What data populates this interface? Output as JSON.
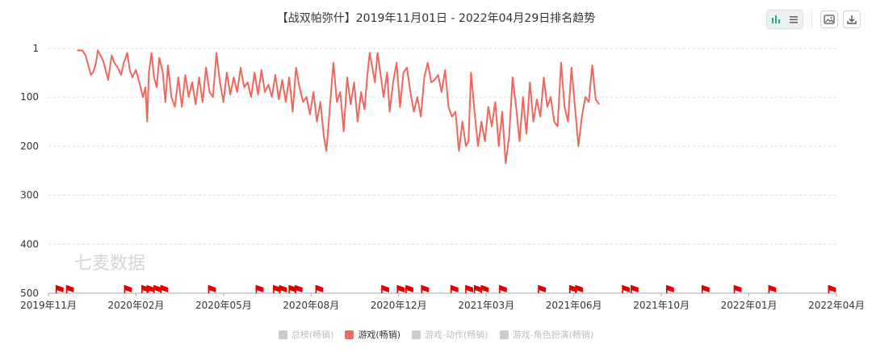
{
  "title": "【战双帕弥什】2019年11月01日 - 2022年04月29日排名趋势",
  "watermark": "七麦数据",
  "toolbar": [
    {
      "name": "bar-chart-icon",
      "state": "active"
    },
    {
      "name": "list-icon",
      "state": "inactive"
    },
    {
      "name": "image-download-icon"
    },
    {
      "name": "download-icon"
    }
  ],
  "colors": {
    "series": "#f0665c",
    "flag": "#e00000",
    "inactive": "#cccccc",
    "grid": "#dddddd"
  },
  "legend": [
    {
      "label": "总榜(畅销)",
      "active": false
    },
    {
      "label": "游戏(畅销)",
      "active": true
    },
    {
      "label": "游戏-动作(畅销)",
      "active": false
    },
    {
      "label": "游戏-角色扮演(畅销)",
      "active": false
    }
  ],
  "chart_data": {
    "type": "line",
    "title": "【战双帕弥什】2019年11月01日 - 2022年04月29日排名趋势",
    "y_axis": {
      "ticks": [
        1,
        100,
        200,
        300,
        400,
        500
      ],
      "range": [
        1,
        500
      ],
      "inverted": true
    },
    "x_axis": {
      "ticks": [
        "2019年11月",
        "2020年02月",
        "2020年05月",
        "2020年08月",
        "2020年12月",
        "2021年03月",
        "2021年06月",
        "2021年10月",
        "2022年01月",
        "2022年04月"
      ],
      "range": [
        "2019-11-01",
        "2022-04-29"
      ]
    },
    "grid": true,
    "series": [
      {
        "name": "游戏(畅销)",
        "points": [
          [
            "2019-12-04",
            5
          ],
          [
            "2019-12-10",
            5
          ],
          [
            "2019-12-14",
            15
          ],
          [
            "2019-12-17",
            35
          ],
          [
            "2019-12-20",
            55
          ],
          [
            "2019-12-23",
            48
          ],
          [
            "2019-12-26",
            30
          ],
          [
            "2019-12-28",
            5
          ],
          [
            "2019-12-31",
            15
          ],
          [
            "2020-01-03",
            25
          ],
          [
            "2020-01-06",
            45
          ],
          [
            "2020-01-09",
            65
          ],
          [
            "2020-01-13",
            15
          ],
          [
            "2020-01-16",
            30
          ],
          [
            "2020-01-20",
            40
          ],
          [
            "2020-01-24",
            55
          ],
          [
            "2020-01-27",
            30
          ],
          [
            "2020-01-31",
            10
          ],
          [
            "2020-02-03",
            45
          ],
          [
            "2020-02-06",
            60
          ],
          [
            "2020-02-10",
            45
          ],
          [
            "2020-02-14",
            70
          ],
          [
            "2020-02-18",
            100
          ],
          [
            "2020-02-21",
            80
          ],
          [
            "2020-02-23",
            150
          ],
          [
            "2020-02-25",
            50
          ],
          [
            "2020-02-28",
            10
          ],
          [
            "2020-03-02",
            60
          ],
          [
            "2020-03-05",
            80
          ],
          [
            "2020-03-08",
            20
          ],
          [
            "2020-03-12",
            50
          ],
          [
            "2020-03-15",
            110
          ],
          [
            "2020-03-18",
            35
          ],
          [
            "2020-03-22",
            100
          ],
          [
            "2020-03-26",
            120
          ],
          [
            "2020-03-30",
            60
          ],
          [
            "2020-04-03",
            120
          ],
          [
            "2020-04-07",
            55
          ],
          [
            "2020-04-11",
            100
          ],
          [
            "2020-04-15",
            70
          ],
          [
            "2020-04-19",
            115
          ],
          [
            "2020-04-23",
            60
          ],
          [
            "2020-04-27",
            110
          ],
          [
            "2020-05-01",
            40
          ],
          [
            "2020-05-05",
            90
          ],
          [
            "2020-05-09",
            100
          ],
          [
            "2020-05-13",
            10
          ],
          [
            "2020-05-17",
            70
          ],
          [
            "2020-05-21",
            110
          ],
          [
            "2020-05-25",
            50
          ],
          [
            "2020-05-29",
            95
          ],
          [
            "2020-06-02",
            60
          ],
          [
            "2020-06-06",
            90
          ],
          [
            "2020-06-10",
            40
          ],
          [
            "2020-06-14",
            80
          ],
          [
            "2020-06-18",
            70
          ],
          [
            "2020-06-22",
            100
          ],
          [
            "2020-06-26",
            50
          ],
          [
            "2020-06-30",
            95
          ],
          [
            "2020-07-04",
            45
          ],
          [
            "2020-07-08",
            90
          ],
          [
            "2020-07-12",
            75
          ],
          [
            "2020-07-16",
            100
          ],
          [
            "2020-07-20",
            55
          ],
          [
            "2020-07-24",
            105
          ],
          [
            "2020-07-28",
            65
          ],
          [
            "2020-08-01",
            110
          ],
          [
            "2020-08-05",
            60
          ],
          [
            "2020-08-09",
            130
          ],
          [
            "2020-08-13",
            40
          ],
          [
            "2020-08-17",
            80
          ],
          [
            "2020-08-21",
            110
          ],
          [
            "2020-08-25",
            100
          ],
          [
            "2020-08-29",
            135
          ],
          [
            "2020-09-02",
            90
          ],
          [
            "2020-09-06",
            150
          ],
          [
            "2020-09-10",
            110
          ],
          [
            "2020-09-14",
            180
          ],
          [
            "2020-09-17",
            210
          ],
          [
            "2020-09-21",
            120
          ],
          [
            "2020-09-25",
            30
          ],
          [
            "2020-09-29",
            110
          ],
          [
            "2020-10-03",
            90
          ],
          [
            "2020-10-07",
            170
          ],
          [
            "2020-10-11",
            60
          ],
          [
            "2020-10-15",
            115
          ],
          [
            "2020-10-19",
            70
          ],
          [
            "2020-10-23",
            150
          ],
          [
            "2020-10-27",
            90
          ],
          [
            "2020-10-31",
            125
          ],
          [
            "2020-11-03",
            60
          ],
          [
            "2020-11-06",
            10
          ],
          [
            "2020-11-09",
            40
          ],
          [
            "2020-11-12",
            70
          ],
          [
            "2020-11-15",
            10
          ],
          [
            "2020-11-19",
            60
          ],
          [
            "2020-11-22",
            100
          ],
          [
            "2020-11-26",
            50
          ],
          [
            "2020-11-29",
            130
          ],
          [
            "2020-12-03",
            70
          ],
          [
            "2020-12-07",
            30
          ],
          [
            "2020-12-11",
            120
          ],
          [
            "2020-12-15",
            50
          ],
          [
            "2020-12-19",
            40
          ],
          [
            "2020-12-23",
            90
          ],
          [
            "2020-12-27",
            130
          ],
          [
            "2020-12-31",
            100
          ],
          [
            "2021-01-04",
            140
          ],
          [
            "2021-01-08",
            60
          ],
          [
            "2021-01-12",
            30
          ],
          [
            "2021-01-16",
            70
          ],
          [
            "2021-01-20",
            65
          ],
          [
            "2021-01-24",
            55
          ],
          [
            "2021-01-28",
            90
          ],
          [
            "2021-02-01",
            45
          ],
          [
            "2021-02-05",
            120
          ],
          [
            "2021-02-09",
            140
          ],
          [
            "2021-02-13",
            130
          ],
          [
            "2021-02-17",
            210
          ],
          [
            "2021-02-21",
            150
          ],
          [
            "2021-02-25",
            200
          ],
          [
            "2021-02-28",
            190
          ],
          [
            "2021-03-03",
            50
          ],
          [
            "2021-03-07",
            130
          ],
          [
            "2021-03-11",
            200
          ],
          [
            "2021-03-15",
            150
          ],
          [
            "2021-03-19",
            190
          ],
          [
            "2021-03-23",
            120
          ],
          [
            "2021-03-27",
            160
          ],
          [
            "2021-03-31",
            110
          ],
          [
            "2021-04-04",
            200
          ],
          [
            "2021-04-08",
            130
          ],
          [
            "2021-04-12",
            235
          ],
          [
            "2021-04-16",
            180
          ],
          [
            "2021-04-20",
            60
          ],
          [
            "2021-04-24",
            120
          ],
          [
            "2021-04-28",
            190
          ],
          [
            "2021-05-02",
            100
          ],
          [
            "2021-05-06",
            175
          ],
          [
            "2021-05-10",
            70
          ],
          [
            "2021-05-14",
            150
          ],
          [
            "2021-05-18",
            105
          ],
          [
            "2021-05-22",
            140
          ],
          [
            "2021-05-26",
            60
          ],
          [
            "2021-05-30",
            120
          ],
          [
            "2021-06-03",
            100
          ],
          [
            "2021-06-07",
            150
          ],
          [
            "2021-06-11",
            160
          ],
          [
            "2021-06-15",
            30
          ],
          [
            "2021-06-19",
            120
          ],
          [
            "2021-06-23",
            150
          ],
          [
            "2021-06-27",
            40
          ],
          [
            "2021-07-01",
            120
          ],
          [
            "2021-07-05",
            200
          ],
          [
            "2021-07-09",
            140
          ],
          [
            "2021-07-13",
            100
          ],
          [
            "2021-07-17",
            110
          ],
          [
            "2021-07-21",
            35
          ],
          [
            "2021-07-25",
            105
          ],
          [
            "2021-07-29",
            115
          ]
        ]
      }
    ],
    "flags": [
      "2019-11-10",
      "2019-11-22",
      "2020-01-28",
      "2020-02-17",
      "2020-02-23",
      "2020-03-02",
      "2020-03-10",
      "2020-05-04",
      "2020-06-28",
      "2020-07-18",
      "2020-07-25",
      "2020-08-05",
      "2020-08-12",
      "2020-09-05",
      "2020-11-20",
      "2020-12-08",
      "2020-12-18",
      "2021-01-05",
      "2021-02-08",
      "2021-02-25",
      "2021-03-07",
      "2021-03-15",
      "2021-04-05",
      "2021-05-20",
      "2021-06-25",
      "2021-07-02",
      "2021-08-25",
      "2021-09-04",
      "2021-10-15",
      "2021-11-25",
      "2022-01-01",
      "2022-02-10",
      "2022-04-20"
    ]
  }
}
